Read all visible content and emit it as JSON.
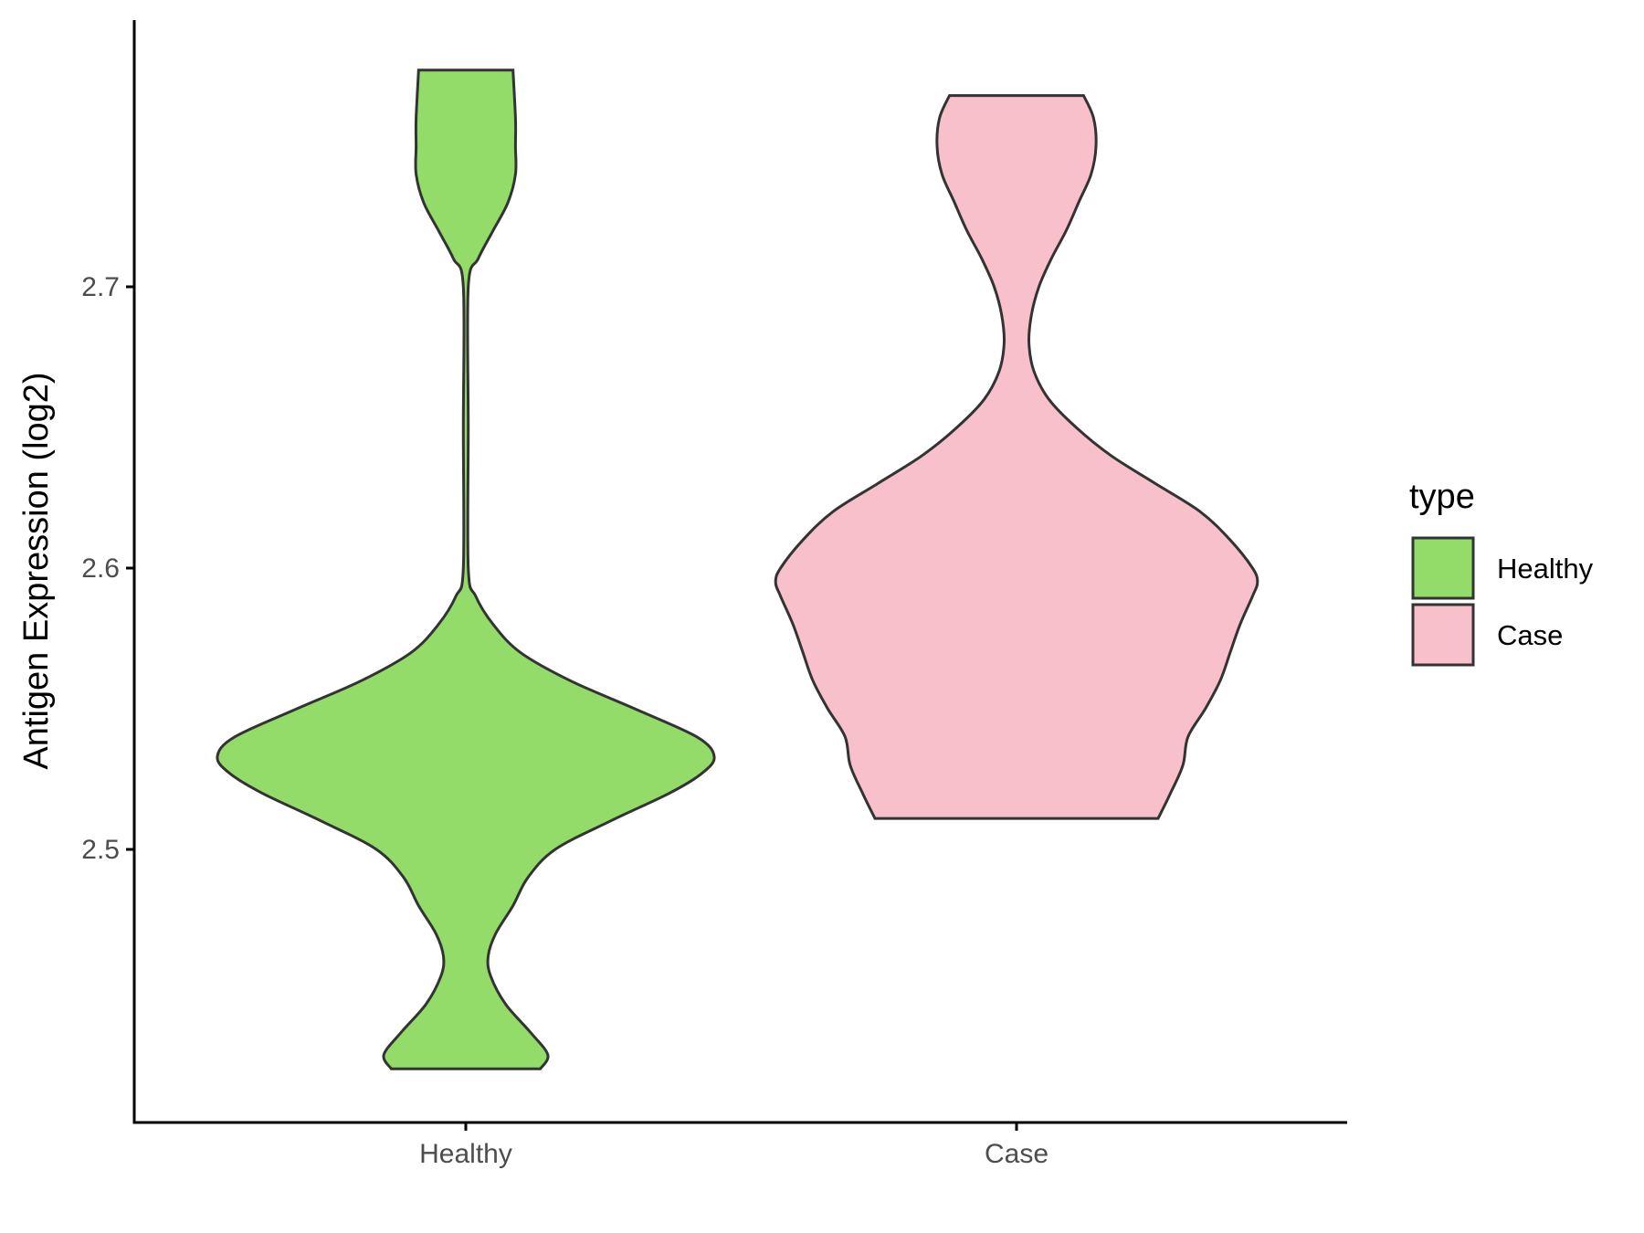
{
  "chart_data": {
    "type": "violin",
    "title": "",
    "xlabel": "",
    "ylabel": "Antigen Expression (log2)",
    "categories": [
      "Healthy",
      "Case"
    ],
    "ylim": [
      2.405,
      2.795
    ],
    "yticks": [
      2.5,
      2.6,
      2.7
    ],
    "ytick_labels": [
      "2.5",
      "2.6",
      "2.7"
    ],
    "grid": false,
    "legend": {
      "title": "type",
      "position": "right",
      "entries": [
        {
          "label": "Healthy",
          "color": "#93DC6A"
        },
        {
          "label": "Case",
          "color": "#F8C0CB"
        }
      ]
    },
    "series": [
      {
        "category": "Healthy",
        "color": "#93DC6A",
        "min": 2.422,
        "max": 2.777,
        "density_profile": [
          [
            2.422,
            0.3
          ],
          [
            2.427,
            0.33
          ],
          [
            2.435,
            0.26
          ],
          [
            2.445,
            0.16
          ],
          [
            2.455,
            0.1
          ],
          [
            2.462,
            0.09
          ],
          [
            2.47,
            0.12
          ],
          [
            2.48,
            0.19
          ],
          [
            2.49,
            0.25
          ],
          [
            2.5,
            0.36
          ],
          [
            2.51,
            0.58
          ],
          [
            2.52,
            0.82
          ],
          [
            2.527,
            0.95
          ],
          [
            2.533,
            1.0
          ],
          [
            2.54,
            0.93
          ],
          [
            2.55,
            0.68
          ],
          [
            2.56,
            0.42
          ],
          [
            2.57,
            0.22
          ],
          [
            2.58,
            0.11
          ],
          [
            2.59,
            0.04
          ],
          [
            2.6,
            0.01
          ],
          [
            2.65,
            0.01
          ],
          [
            2.7,
            0.01
          ],
          [
            2.71,
            0.05
          ],
          [
            2.72,
            0.11
          ],
          [
            2.73,
            0.17
          ],
          [
            2.74,
            0.2
          ],
          [
            2.75,
            0.2
          ],
          [
            2.76,
            0.2
          ],
          [
            2.777,
            0.19
          ]
        ]
      },
      {
        "category": "Case",
        "color": "#F8C0CB",
        "min": 2.511,
        "max": 2.768,
        "density_profile": [
          [
            2.511,
            0.57
          ],
          [
            2.52,
            0.62
          ],
          [
            2.53,
            0.67
          ],
          [
            2.54,
            0.69
          ],
          [
            2.55,
            0.76
          ],
          [
            2.56,
            0.82
          ],
          [
            2.57,
            0.86
          ],
          [
            2.58,
            0.9
          ],
          [
            2.59,
            0.95
          ],
          [
            2.595,
            0.97
          ],
          [
            2.6,
            0.95
          ],
          [
            2.61,
            0.86
          ],
          [
            2.62,
            0.74
          ],
          [
            2.63,
            0.56
          ],
          [
            2.64,
            0.38
          ],
          [
            2.65,
            0.24
          ],
          [
            2.66,
            0.13
          ],
          [
            2.67,
            0.07
          ],
          [
            2.68,
            0.05
          ],
          [
            2.69,
            0.06
          ],
          [
            2.7,
            0.09
          ],
          [
            2.71,
            0.14
          ],
          [
            2.72,
            0.2
          ],
          [
            2.73,
            0.25
          ],
          [
            2.74,
            0.3
          ],
          [
            2.75,
            0.32
          ],
          [
            2.76,
            0.31
          ],
          [
            2.768,
            0.27
          ]
        ]
      }
    ]
  }
}
